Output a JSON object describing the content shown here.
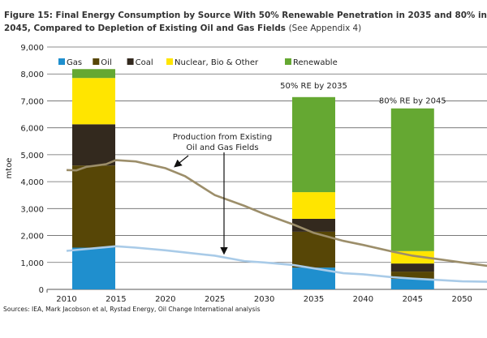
{
  "title": "Figure 15: Final Energy Consumption by Source With 50% Renewable Penetration in 2035 and 80% in 2045, Compared to Depletion of Existing Oil and Gas Fields",
  "title_suffix": "(See Appendix 4)",
  "source": "Sources: IEA, Mark Jacobson et al, Rystad Energy, Oil Change International analysis",
  "chart_data": {
    "type": "bar",
    "stacked": true,
    "ylabel": "mtoe",
    "ylim": [
      0,
      9000
    ],
    "yticks": [
      "0",
      "1,000",
      "2,000",
      "3,000",
      "4,000",
      "5,000",
      "6,000",
      "7,000",
      "8,000",
      "9,000"
    ],
    "xlim": [
      2006,
      2054
    ],
    "xticks": [
      "2010",
      "2015",
      "2020",
      "2025",
      "2030",
      "2035",
      "2040",
      "2045",
      "2050"
    ],
    "grid": true,
    "legend_placement": "top-left",
    "bars": [
      {
        "x": 2012.7,
        "label": "",
        "values": {
          "Gas": 1550,
          "Oil": 3050,
          "Coal": 1530,
          "Nuclear, Bio & Other": 1720,
          "Renewable": 330
        }
      },
      {
        "x": 2035,
        "label": "50% RE by 2035",
        "values": {
          "Gas": 810,
          "Oil": 1330,
          "Coal": 480,
          "Nuclear, Bio & Other": 990,
          "Renewable": 3530
        }
      },
      {
        "x": 2045,
        "label": "80% RE by 2045",
        "values": {
          "Gas": 390,
          "Oil": 270,
          "Coal": 300,
          "Nuclear, Bio & Other": 460,
          "Renewable": 5300
        }
      }
    ],
    "series": [
      {
        "name": "Gas",
        "color": "#1f8fce"
      },
      {
        "name": "Oil",
        "color": "#574606"
      },
      {
        "name": "Coal",
        "color": "#33291e"
      },
      {
        "name": "Nuclear, Bio & Other",
        "color": "#ffe500"
      },
      {
        "name": "Renewable",
        "color": "#65a832"
      }
    ],
    "lines": [
      {
        "name": "oil-gas-production",
        "color": "#9c8e6a",
        "x": [
          2010,
          2011,
          2012,
          2014,
          2015,
          2017,
          2020,
          2022,
          2025,
          2028,
          2030,
          2033,
          2035,
          2038,
          2040,
          2043,
          2045,
          2048,
          2050,
          2053
        ],
        "y": [
          4430,
          4420,
          4550,
          4650,
          4800,
          4750,
          4500,
          4200,
          3500,
          3100,
          2800,
          2400,
          2100,
          1800,
          1650,
          1400,
          1250,
          1100,
          1000,
          850
        ]
      },
      {
        "name": "gas-production",
        "color": "#a9cbe8",
        "x": [
          2010,
          2012,
          2015,
          2017,
          2020,
          2025,
          2028,
          2030,
          2033,
          2035,
          2038,
          2040,
          2043,
          2045,
          2048,
          2050,
          2053
        ],
        "y": [
          1430,
          1500,
          1600,
          1550,
          1450,
          1250,
          1050,
          1000,
          900,
          780,
          600,
          560,
          450,
          400,
          340,
          300,
          280
        ]
      }
    ],
    "annotation": "Production from Existing Oil and Gas Fields",
    "annotation_lines": [
      "Production from Existing",
      "Oil and Gas Fields"
    ]
  }
}
